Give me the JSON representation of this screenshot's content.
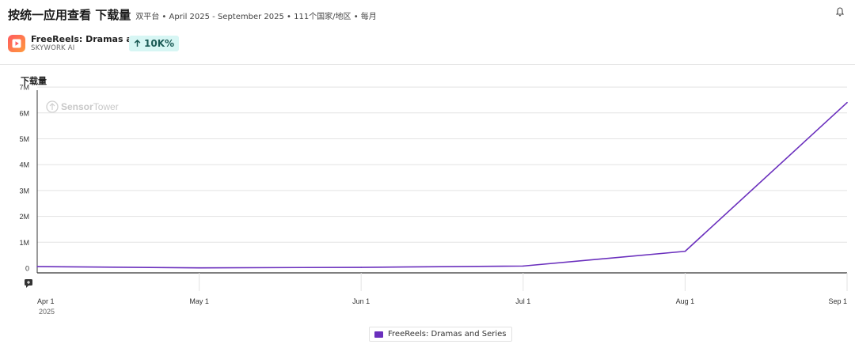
{
  "header": {
    "title": "按统一应用查看 下载量",
    "subtitle": "双平台 • April 2025 - September 2025 • 111个国家/地区 • 每月"
  },
  "app": {
    "name": "FreeReels: Dramas an...",
    "publisher": "SKYWORK AI",
    "change": "10K%"
  },
  "chart_label": "下载量",
  "watermark": {
    "prefix": "Sensor",
    "suffix": "Tower"
  },
  "colors": {
    "series": "#6a2fbd",
    "badge_bg": "#d7f6f4",
    "badge_text": "#1a5a55",
    "grid": "#e3e3e3"
  },
  "chart_data": {
    "type": "line",
    "title": "",
    "ylabel": "下载量",
    "xlabel": "",
    "x": [
      "Apr 1",
      "May 1",
      "Jun 1",
      "Jul 1",
      "Aug 1",
      "Sep 1"
    ],
    "x_sublabel": "2025",
    "y_ticks": [
      "0",
      "1M",
      "2M",
      "3M",
      "4M",
      "5M",
      "6M",
      "7M"
    ],
    "y_tick_values": [
      0,
      1000000,
      2000000,
      3000000,
      4000000,
      5000000,
      6000000,
      7000000
    ],
    "ylim": [
      0,
      7000000
    ],
    "grid": true,
    "legend": "bottom-center",
    "series": [
      {
        "name": "FreeReels: Dramas and Series",
        "values": [
          60000,
          10000,
          30000,
          80000,
          650000,
          6400000
        ]
      }
    ]
  }
}
